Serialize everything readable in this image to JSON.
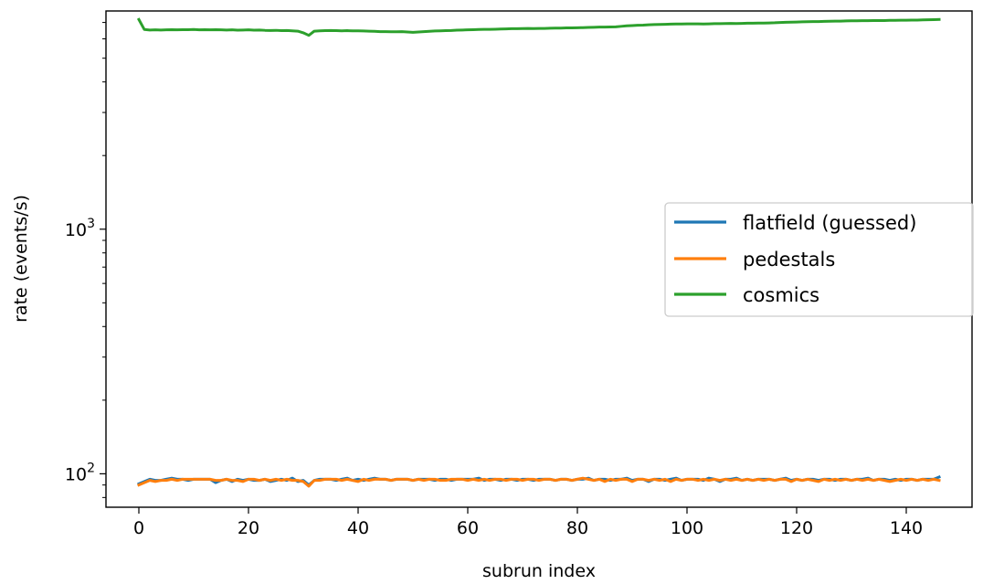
{
  "chart_data": {
    "type": "line",
    "xlabel": "subrun index",
    "ylabel": "rate (events/s)",
    "y_scale": "log",
    "xlim": [
      -6,
      152
    ],
    "ylim": [
      73,
      7800
    ],
    "x_ticks": [
      0,
      20,
      40,
      60,
      80,
      100,
      120,
      140
    ],
    "y_ticks": [
      {
        "value": 100,
        "base": "10",
        "exp": "2"
      },
      {
        "value": 1000,
        "base": "10",
        "exp": "3"
      }
    ],
    "y_minor_ticks": [
      80,
      90,
      200,
      300,
      400,
      500,
      600,
      700,
      800,
      900,
      2000,
      3000,
      4000,
      5000,
      6000,
      7000
    ],
    "grid": false,
    "legend_position": "center-right",
    "x_start": 0,
    "x_end": 146,
    "series": [
      {
        "name": "flatfield (guessed)",
        "color": "#1f77b4",
        "y": [
          91,
          93,
          95,
          94,
          94,
          95,
          96,
          95,
          95,
          94,
          95,
          95,
          95,
          95,
          92,
          94,
          95,
          93,
          95,
          94,
          95,
          94,
          94,
          95,
          93,
          94,
          95,
          94,
          96,
          93,
          94,
          90,
          94,
          95,
          95,
          95,
          94,
          95,
          96,
          94,
          95,
          94,
          95,
          96,
          95,
          95,
          94,
          95,
          95,
          95,
          94,
          95,
          95,
          95,
          94,
          95,
          95,
          94,
          95,
          95,
          95,
          95,
          96,
          94,
          95,
          95,
          94,
          95,
          95,
          94,
          95,
          95,
          94,
          95,
          95,
          95,
          94,
          95,
          95,
          94,
          95,
          95,
          96,
          94,
          95,
          95,
          94,
          95,
          95,
          96,
          94,
          95,
          95,
          93,
          95,
          95,
          94,
          95,
          96,
          94,
          95,
          95,
          95,
          94,
          96,
          95,
          93,
          95,
          95,
          96,
          94,
          95,
          94,
          95,
          95,
          95,
          94,
          95,
          96,
          94,
          95,
          94,
          95,
          95,
          94,
          95,
          95,
          94,
          95,
          95,
          94,
          95,
          95,
          96,
          94,
          95,
          95,
          94,
          95,
          94,
          95,
          95,
          94,
          95,
          95,
          95,
          97
        ]
      },
      {
        "name": "pedestals",
        "color": "#ff7f0e",
        "y": [
          90,
          92,
          94,
          93,
          94,
          94,
          95,
          94,
          95,
          95,
          95,
          95,
          95,
          95,
          94,
          94,
          95,
          94,
          94,
          93,
          95,
          95,
          94,
          95,
          94,
          95,
          94,
          95,
          94,
          94,
          93,
          89,
          94,
          94,
          95,
          95,
          95,
          94,
          95,
          94,
          93,
          95,
          94,
          95,
          95,
          95,
          94,
          95,
          95,
          95,
          94,
          95,
          94,
          95,
          95,
          94,
          94,
          95,
          95,
          95,
          94,
          95,
          94,
          95,
          94,
          95,
          95,
          94,
          95,
          95,
          94,
          95,
          95,
          94,
          95,
          95,
          94,
          95,
          95,
          94,
          95,
          96,
          95,
          94,
          95,
          93,
          95,
          94,
          95,
          95,
          93,
          95,
          95,
          94,
          95,
          94,
          95,
          93,
          95,
          94,
          95,
          95,
          94,
          95,
          94,
          95,
          94,
          95,
          94,
          95,
          94,
          95,
          94,
          95,
          94,
          95,
          94,
          95,
          95,
          93,
          95,
          94,
          95,
          94,
          93,
          95,
          94,
          95,
          94,
          95,
          94,
          95,
          94,
          95,
          94,
          95,
          94,
          93,
          94,
          95,
          94,
          95,
          94,
          95,
          94,
          95,
          94
        ]
      },
      {
        "name": "cosmics",
        "color": "#2ca02c",
        "y": [
          7200,
          6550,
          6520,
          6530,
          6520,
          6530,
          6540,
          6530,
          6540,
          6540,
          6550,
          6530,
          6540,
          6530,
          6540,
          6530,
          6520,
          6530,
          6510,
          6520,
          6530,
          6510,
          6520,
          6500,
          6490,
          6500,
          6480,
          6490,
          6470,
          6450,
          6350,
          6200,
          6450,
          6470,
          6480,
          6490,
          6480,
          6470,
          6480,
          6470,
          6470,
          6460,
          6450,
          6440,
          6420,
          6420,
          6410,
          6410,
          6420,
          6400,
          6380,
          6400,
          6420,
          6440,
          6460,
          6470,
          6480,
          6490,
          6510,
          6520,
          6530,
          6540,
          6550,
          6560,
          6560,
          6570,
          6580,
          6590,
          6600,
          6600,
          6610,
          6620,
          6610,
          6620,
          6620,
          6630,
          6640,
          6640,
          6650,
          6650,
          6660,
          6670,
          6680,
          6690,
          6700,
          6700,
          6710,
          6720,
          6750,
          6780,
          6800,
          6820,
          6830,
          6850,
          6860,
          6870,
          6880,
          6890,
          6900,
          6900,
          6910,
          6910,
          6910,
          6900,
          6910,
          6920,
          6920,
          6930,
          6940,
          6930,
          6940,
          6950,
          6950,
          6960,
          6960,
          6970,
          6980,
          7000,
          7010,
          7020,
          7030,
          7040,
          7050,
          7060,
          7060,
          7070,
          7080,
          7090,
          7090,
          7100,
          7110,
          7110,
          7120,
          7120,
          7130,
          7130,
          7130,
          7140,
          7140,
          7150,
          7150,
          7160,
          7160,
          7170,
          7180,
          7190,
          7200
        ]
      }
    ]
  }
}
